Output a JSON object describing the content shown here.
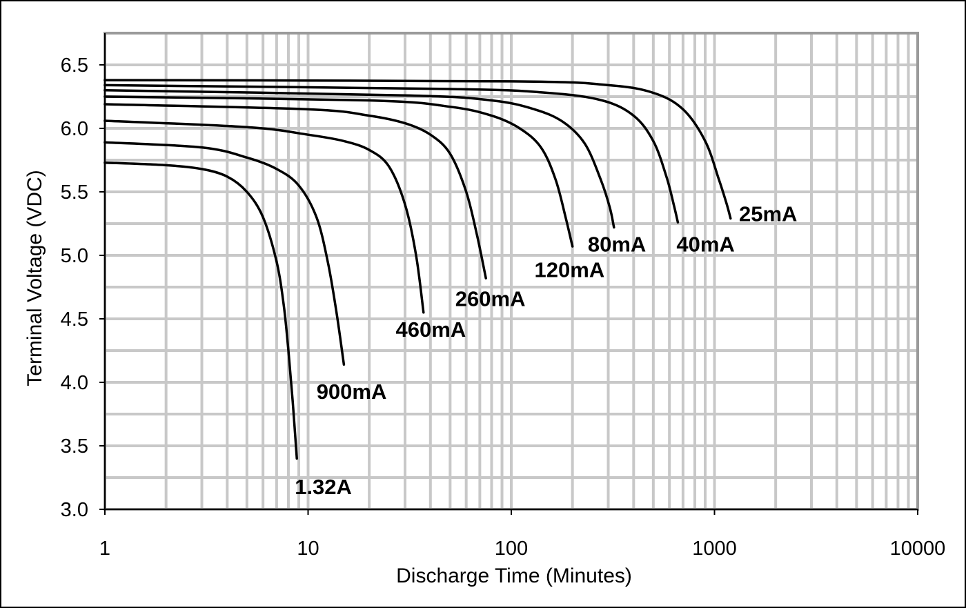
{
  "chart_data": {
    "type": "line",
    "title": "",
    "xlabel": "Discharge Time (Minutes)",
    "ylabel": "Terminal Voltage (VDC)",
    "xscale": "log",
    "xlim": [
      1,
      10000
    ],
    "ylim": [
      3.0,
      6.75
    ],
    "grid": true,
    "legend": "none",
    "x_ticks": [
      1,
      10,
      100,
      1000,
      10000
    ],
    "x_tick_labels": [
      "1",
      "10",
      "100",
      "1000",
      "10000"
    ],
    "y_ticks": [
      3.0,
      3.5,
      4.0,
      4.5,
      5.0,
      5.5,
      6.0,
      6.5
    ],
    "y_tick_labels": [
      "3.0",
      "3.5",
      "4.0",
      "4.5",
      "5.0",
      "5.5",
      "6.0",
      "6.5"
    ],
    "series": [
      {
        "label": "1.32A",
        "label_at": {
          "x": 8.6,
          "y": 3.12
        },
        "points": [
          [
            1,
            5.73
          ],
          [
            2,
            5.71
          ],
          [
            3,
            5.68
          ],
          [
            4,
            5.62
          ],
          [
            5,
            5.5
          ],
          [
            6,
            5.3
          ],
          [
            7,
            4.95
          ],
          [
            7.6,
            4.6
          ],
          [
            8,
            4.25
          ],
          [
            8.4,
            3.85
          ],
          [
            8.8,
            3.4
          ]
        ]
      },
      {
        "label": "900mA",
        "label_at": {
          "x": 11,
          "y": 3.87
        },
        "points": [
          [
            1,
            5.89
          ],
          [
            3,
            5.85
          ],
          [
            5,
            5.77
          ],
          [
            7,
            5.68
          ],
          [
            9,
            5.55
          ],
          [
            11,
            5.3
          ],
          [
            12.5,
            4.95
          ],
          [
            13.8,
            4.55
          ],
          [
            15,
            4.14
          ]
        ]
      },
      {
        "label": "460mA",
        "label_at": {
          "x": 27,
          "y": 4.36
        },
        "points": [
          [
            1,
            6.06
          ],
          [
            5,
            6.01
          ],
          [
            10,
            5.95
          ],
          [
            15,
            5.9
          ],
          [
            20,
            5.83
          ],
          [
            25,
            5.7
          ],
          [
            30,
            5.4
          ],
          [
            34,
            5.0
          ],
          [
            37,
            4.55
          ]
        ]
      },
      {
        "label": "260mA",
        "label_at": {
          "x": 53,
          "y": 4.6
        },
        "points": [
          [
            1,
            6.19
          ],
          [
            10,
            6.15
          ],
          [
            20,
            6.1
          ],
          [
            30,
            6.04
          ],
          [
            40,
            5.95
          ],
          [
            50,
            5.8
          ],
          [
            60,
            5.5
          ],
          [
            68,
            5.15
          ],
          [
            75,
            4.82
          ]
        ]
      },
      {
        "label": "120mA",
        "label_at": {
          "x": 130,
          "y": 4.83
        },
        "points": [
          [
            1,
            6.25
          ],
          [
            20,
            6.22
          ],
          [
            50,
            6.17
          ],
          [
            80,
            6.1
          ],
          [
            110,
            6.0
          ],
          [
            140,
            5.85
          ],
          [
            165,
            5.6
          ],
          [
            185,
            5.3
          ],
          [
            200,
            5.07
          ]
        ]
      },
      {
        "label": "80mA",
        "label_at": {
          "x": 238,
          "y": 5.03
        },
        "points": [
          [
            1,
            6.3
          ],
          [
            30,
            6.26
          ],
          [
            80,
            6.22
          ],
          [
            130,
            6.15
          ],
          [
            180,
            6.05
          ],
          [
            230,
            5.88
          ],
          [
            275,
            5.6
          ],
          [
            305,
            5.38
          ],
          [
            320,
            5.22
          ]
        ]
      },
      {
        "label": "40mA",
        "label_at": {
          "x": 650,
          "y": 5.03
        },
        "points": [
          [
            1,
            6.34
          ],
          [
            50,
            6.31
          ],
          [
            150,
            6.28
          ],
          [
            280,
            6.22
          ],
          [
            400,
            6.1
          ],
          [
            500,
            5.9
          ],
          [
            580,
            5.62
          ],
          [
            630,
            5.4
          ],
          [
            660,
            5.26
          ]
        ]
      },
      {
        "label": "25mA",
        "label_at": {
          "x": 1320,
          "y": 5.27
        },
        "points": [
          [
            1,
            6.38
          ],
          [
            100,
            6.37
          ],
          [
            300,
            6.34
          ],
          [
            500,
            6.28
          ],
          [
            700,
            6.15
          ],
          [
            900,
            5.9
          ],
          [
            1050,
            5.6
          ],
          [
            1150,
            5.4
          ],
          [
            1200,
            5.29
          ]
        ]
      }
    ]
  }
}
